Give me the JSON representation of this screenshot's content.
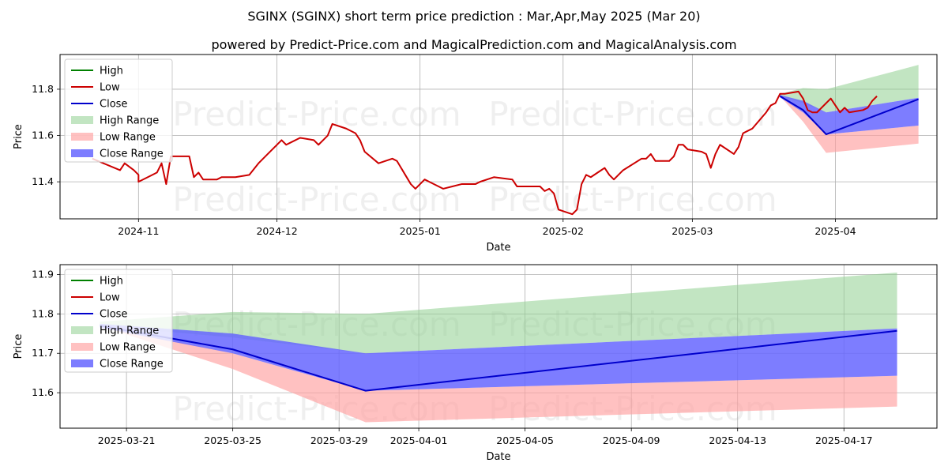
{
  "title": "SGINX (SGINX) short term price prediction : Mar,Apr,May 2025 (Mar 20)",
  "subtitle": "powered by Predict-Price.com and MagicalPrediction.com and MagicalAnalysis.com",
  "watermark": "Predict-Price.com",
  "colors": {
    "high": "#008000",
    "low": "#cc0000",
    "close": "#0000cc",
    "high_range": "#8fcf8f",
    "low_range": "#ff9f9f",
    "close_range": "#6666ff",
    "grid": "#b0b0b0"
  },
  "legend": [
    "High",
    "Low",
    "Close",
    "High Range",
    "Low Range",
    "Close Range"
  ],
  "chart_data": [
    {
      "type": "line",
      "name": "history",
      "xlabel": "Date",
      "ylabel": "Price",
      "x_ticks": [
        "2024-11",
        "2024-12",
        "2025-01",
        "2025-02",
        "2025-03",
        "2025-04"
      ],
      "y_ticks": [
        "11.4",
        "11.6",
        "11.8"
      ],
      "xlim": [
        "2024-10-15",
        "2025-04-23"
      ],
      "ylim": [
        11.24,
        11.95
      ],
      "grid": true,
      "legend_position": "top-left",
      "series": [
        {
          "name": "Low",
          "points": [
            [
              "2024-10-22",
              11.5
            ],
            [
              "2024-10-28",
              11.45
            ],
            [
              "2024-10-29",
              11.48
            ],
            [
              "2024-10-31",
              11.45
            ],
            [
              "2024-11-01",
              11.43
            ],
            [
              "2024-11-01",
              11.4
            ],
            [
              "2024-11-04",
              11.43
            ],
            [
              "2024-11-05",
              11.44
            ],
            [
              "2024-11-06",
              11.48
            ],
            [
              "2024-11-07",
              11.39
            ],
            [
              "2024-11-08",
              11.51
            ],
            [
              "2024-11-11",
              11.51
            ],
            [
              "2024-11-12",
              11.51
            ],
            [
              "2024-11-13",
              11.42
            ],
            [
              "2024-11-14",
              11.44
            ],
            [
              "2024-11-15",
              11.41
            ],
            [
              "2024-11-18",
              11.41
            ],
            [
              "2024-11-19",
              11.42
            ],
            [
              "2024-11-22",
              11.42
            ],
            [
              "2024-11-25",
              11.43
            ],
            [
              "2024-11-27",
              11.48
            ],
            [
              "2024-11-29",
              11.52
            ],
            [
              "2024-12-02",
              11.58
            ],
            [
              "2024-12-03",
              11.56
            ],
            [
              "2024-12-04",
              11.57
            ],
            [
              "2024-12-06",
              11.59
            ],
            [
              "2024-12-09",
              11.58
            ],
            [
              "2024-12-10",
              11.56
            ],
            [
              "2024-12-11",
              11.58
            ],
            [
              "2024-12-12",
              11.6
            ],
            [
              "2024-12-13",
              11.65
            ],
            [
              "2024-12-16",
              11.63
            ],
            [
              "2024-12-18",
              11.61
            ],
            [
              "2024-12-19",
              11.58
            ],
            [
              "2024-12-20",
              11.53
            ],
            [
              "2024-12-23",
              11.48
            ],
            [
              "2024-12-26",
              11.5
            ],
            [
              "2024-12-27",
              11.49
            ],
            [
              "2024-12-30",
              11.39
            ],
            [
              "2024-12-31",
              11.37
            ],
            [
              "2025-01-02",
              11.41
            ],
            [
              "2025-01-03",
              11.4
            ],
            [
              "2025-01-06",
              11.37
            ],
            [
              "2025-01-08",
              11.38
            ],
            [
              "2025-01-10",
              11.39
            ],
            [
              "2025-01-13",
              11.39
            ],
            [
              "2025-01-14",
              11.4
            ],
            [
              "2025-01-17",
              11.42
            ],
            [
              "2025-01-21",
              11.41
            ],
            [
              "2025-01-22",
              11.38
            ],
            [
              "2025-01-24",
              11.38
            ],
            [
              "2025-01-27",
              11.38
            ],
            [
              "2025-01-28",
              11.36
            ],
            [
              "2025-01-29",
              11.37
            ],
            [
              "2025-01-30",
              11.35
            ],
            [
              "2025-01-31",
              11.28
            ],
            [
              "2025-02-03",
              11.26
            ],
            [
              "2025-02-04",
              11.28
            ],
            [
              "2025-02-05",
              11.39
            ],
            [
              "2025-02-06",
              11.43
            ],
            [
              "2025-02-07",
              11.42
            ],
            [
              "2025-02-10",
              11.46
            ],
            [
              "2025-02-11",
              11.43
            ],
            [
              "2025-02-12",
              11.41
            ],
            [
              "2025-02-13",
              11.43
            ],
            [
              "2025-02-14",
              11.45
            ],
            [
              "2025-02-18",
              11.5
            ],
            [
              "2025-02-19",
              11.5
            ],
            [
              "2025-02-20",
              11.52
            ],
            [
              "2025-02-21",
              11.49
            ],
            [
              "2025-02-24",
              11.49
            ],
            [
              "2025-02-25",
              11.51
            ],
            [
              "2025-02-26",
              11.56
            ],
            [
              "2025-02-27",
              11.56
            ],
            [
              "2025-02-28",
              11.54
            ],
            [
              "2025-03-03",
              11.53
            ],
            [
              "2025-03-04",
              11.52
            ],
            [
              "2025-03-05",
              11.46
            ],
            [
              "2025-03-06",
              11.52
            ],
            [
              "2025-03-07",
              11.56
            ],
            [
              "2025-03-10",
              11.52
            ],
            [
              "2025-03-11",
              11.55
            ],
            [
              "2025-03-12",
              11.61
            ],
            [
              "2025-03-13",
              11.62
            ],
            [
              "2025-03-14",
              11.63
            ],
            [
              "2025-03-17",
              11.7
            ],
            [
              "2025-03-18",
              11.73
            ],
            [
              "2025-03-19",
              11.74
            ],
            [
              "2025-03-20",
              11.78
            ],
            [
              "2025-03-21",
              11.78
            ],
            [
              "2025-03-24",
              11.79
            ],
            [
              "2025-03-25",
              11.76
            ],
            [
              "2025-03-26",
              11.71
            ],
            [
              "2025-03-27",
              11.7
            ],
            [
              "2025-03-28",
              11.7
            ],
            [
              "2025-03-31",
              11.76
            ],
            [
              "2025-04-01",
              11.73
            ],
            [
              "2025-04-02",
              11.7
            ],
            [
              "2025-04-03",
              11.72
            ],
            [
              "2025-04-04",
              11.7
            ],
            [
              "2025-04-07",
              11.71
            ],
            [
              "2025-04-08",
              11.72
            ],
            [
              "2025-04-09",
              11.75
            ],
            [
              "2025-04-10",
              11.77
            ]
          ]
        },
        {
          "name": "Close",
          "points": [
            [
              "2025-03-20",
              11.77
            ],
            [
              "2025-03-25",
              11.71
            ],
            [
              "2025-03-30",
              11.605
            ],
            [
              "2025-04-19",
              11.757
            ]
          ]
        }
      ],
      "bands": [
        {
          "name": "High Range",
          "points": [
            [
              "2025-03-20",
              11.77,
              11.78
            ],
            [
              "2025-03-25",
              11.74,
              11.805
            ],
            [
              "2025-03-30",
              11.7,
              11.8
            ],
            [
              "2025-04-19",
              11.763,
              11.905
            ]
          ]
        },
        {
          "name": "Low Range",
          "points": [
            [
              "2025-03-20",
              11.77,
              11.77
            ],
            [
              "2025-03-25",
              11.66,
              11.7
            ],
            [
              "2025-03-30",
              11.525,
              11.605
            ],
            [
              "2025-04-19",
              11.565,
              11.643
            ]
          ]
        },
        {
          "name": "Close Range",
          "points": [
            [
              "2025-03-20",
              11.765,
              11.775
            ],
            [
              "2025-03-25",
              11.7,
              11.75
            ],
            [
              "2025-03-30",
              11.605,
              11.7
            ],
            [
              "2025-04-19",
              11.643,
              11.763
            ]
          ]
        }
      ]
    },
    {
      "type": "line",
      "name": "forecast",
      "xlabel": "Date",
      "ylabel": "Price",
      "x_ticks": [
        "2025-03-21",
        "2025-03-25",
        "2025-03-29",
        "2025-04-01",
        "2025-04-05",
        "2025-04-09",
        "2025-04-13",
        "2025-04-17"
      ],
      "y_ticks": [
        "11.6",
        "11.7",
        "11.8",
        "11.9"
      ],
      "xlim": [
        "2025-03-18.5",
        "2025-04-20.5"
      ],
      "ylim": [
        11.51,
        11.925
      ],
      "grid": true,
      "legend_position": "top-left",
      "series": [
        {
          "name": "Close",
          "points": [
            [
              "2025-03-20",
              11.77
            ],
            [
              "2025-03-25",
              11.71
            ],
            [
              "2025-03-30",
              11.605
            ],
            [
              "2025-04-19",
              11.757
            ]
          ]
        }
      ],
      "bands": [
        {
          "name": "High Range",
          "points": [
            [
              "2025-03-20",
              11.77,
              11.78
            ],
            [
              "2025-03-25",
              11.74,
              11.805
            ],
            [
              "2025-03-30",
              11.7,
              11.8
            ],
            [
              "2025-04-19",
              11.763,
              11.905
            ]
          ]
        },
        {
          "name": "Low Range",
          "points": [
            [
              "2025-03-20",
              11.77,
              11.77
            ],
            [
              "2025-03-25",
              11.66,
              11.7
            ],
            [
              "2025-03-30",
              11.525,
              11.605
            ],
            [
              "2025-04-19",
              11.565,
              11.643
            ]
          ]
        },
        {
          "name": "Close Range",
          "points": [
            [
              "2025-03-20",
              11.765,
              11.775
            ],
            [
              "2025-03-25",
              11.7,
              11.75
            ],
            [
              "2025-03-30",
              11.605,
              11.7
            ],
            [
              "2025-04-19",
              11.643,
              11.763
            ]
          ]
        }
      ]
    }
  ]
}
